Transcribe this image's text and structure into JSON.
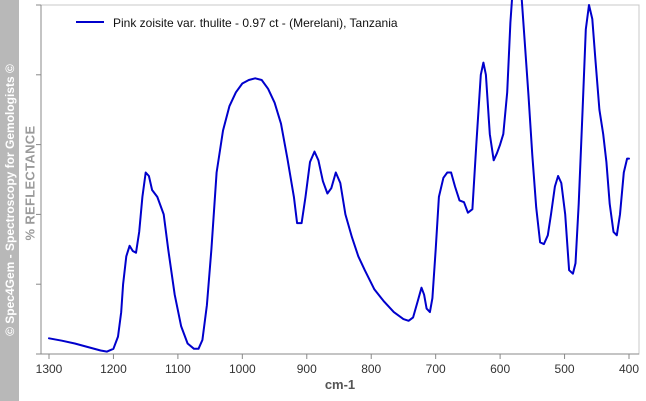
{
  "watermark": "© Spec4Gem - Spectroscopy for Gemologists ©",
  "chart_data": {
    "type": "line",
    "title": "",
    "xlabel": "cm-1",
    "ylabel": "% REFLECTANCE",
    "xlim": [
      1300,
      400
    ],
    "x_reversed": true,
    "ylim": [
      0,
      100
    ],
    "x_ticks": [
      1300,
      1200,
      1100,
      1000,
      900,
      800,
      700,
      600,
      500,
      400
    ],
    "x_tick_labels": [
      "1300",
      "1200",
      "1100",
      "1000",
      "900",
      "800",
      "700",
      "600",
      "500",
      "400"
    ],
    "y_ticks": [
      0,
      20,
      40,
      60,
      80,
      100
    ],
    "y_tick_labels_shown": false,
    "grid": false,
    "legend_position": "top-left",
    "series": [
      {
        "name": "Pink zoisite var. thulite - 0.97 ct - (Merelani), Tanzania",
        "color": "#0000cc",
        "points": [
          [
            1300,
            4.5
          ],
          [
            1280,
            3.8
          ],
          [
            1260,
            3.0
          ],
          [
            1240,
            2.0
          ],
          [
            1220,
            1.0
          ],
          [
            1210,
            0.7
          ],
          [
            1200,
            1.5
          ],
          [
            1193,
            5.0
          ],
          [
            1188,
            12.0
          ],
          [
            1185,
            20.0
          ],
          [
            1180,
            28.0
          ],
          [
            1175,
            31.0
          ],
          [
            1170,
            29.5
          ],
          [
            1165,
            29.0
          ],
          [
            1160,
            35.0
          ],
          [
            1155,
            45.0
          ],
          [
            1150,
            52.0
          ],
          [
            1145,
            51.0
          ],
          [
            1140,
            47.0
          ],
          [
            1132,
            45.0
          ],
          [
            1122,
            40.0
          ],
          [
            1115,
            30.0
          ],
          [
            1105,
            17.0
          ],
          [
            1095,
            8.0
          ],
          [
            1085,
            3.0
          ],
          [
            1075,
            1.5
          ],
          [
            1068,
            1.5
          ],
          [
            1062,
            4.0
          ],
          [
            1055,
            14.0
          ],
          [
            1048,
            30.0
          ],
          [
            1040,
            52.0
          ],
          [
            1030,
            64.0
          ],
          [
            1020,
            71.0
          ],
          [
            1010,
            75.0
          ],
          [
            1000,
            77.5
          ],
          [
            990,
            78.5
          ],
          [
            980,
            79.0
          ],
          [
            970,
            78.5
          ],
          [
            960,
            76.0
          ],
          [
            950,
            72.0
          ],
          [
            940,
            66.0
          ],
          [
            930,
            56.0
          ],
          [
            920,
            45.0
          ],
          [
            915,
            37.5
          ],
          [
            908,
            37.5
          ],
          [
            902,
            45.0
          ],
          [
            895,
            55.0
          ],
          [
            888,
            58.0
          ],
          [
            882,
            55.5
          ],
          [
            875,
            49.5
          ],
          [
            868,
            46.0
          ],
          [
            862,
            47.5
          ],
          [
            855,
            52.0
          ],
          [
            848,
            49.0
          ],
          [
            840,
            40.0
          ],
          [
            830,
            33.5
          ],
          [
            820,
            28.0
          ],
          [
            810,
            24.0
          ],
          [
            795,
            18.5
          ],
          [
            780,
            15.0
          ],
          [
            765,
            12.0
          ],
          [
            750,
            10.0
          ],
          [
            742,
            9.5
          ],
          [
            735,
            10.5
          ],
          [
            728,
            15.0
          ],
          [
            722,
            19.0
          ],
          [
            718,
            17.0
          ],
          [
            714,
            13.0
          ],
          [
            709,
            12.0
          ],
          [
            705,
            16.0
          ],
          [
            700,
            30.0
          ],
          [
            695,
            45.0
          ],
          [
            688,
            50.5
          ],
          [
            682,
            52.0
          ],
          [
            676,
            52.0
          ],
          [
            670,
            48.0
          ],
          [
            663,
            44.0
          ],
          [
            656,
            43.5
          ],
          [
            650,
            40.5
          ],
          [
            643,
            41.5
          ],
          [
            637,
            60.0
          ],
          [
            630,
            80.0
          ],
          [
            626,
            83.5
          ],
          [
            622,
            80.0
          ],
          [
            616,
            63.0
          ],
          [
            610,
            55.5
          ],
          [
            605,
            57.5
          ],
          [
            600,
            60.0
          ],
          [
            595,
            63.0
          ],
          [
            589,
            75.0
          ],
          [
            584,
            95.0
          ],
          [
            578,
            111.0
          ],
          [
            573,
            110.0
          ],
          [
            567,
            103.0
          ],
          [
            562,
            90.0
          ],
          [
            556,
            74.0
          ],
          [
            550,
            57.0
          ],
          [
            544,
            42.0
          ],
          [
            538,
            32.0
          ],
          [
            532,
            31.5
          ],
          [
            526,
            34.0
          ],
          [
            521,
            40.0
          ],
          [
            515,
            48.0
          ],
          [
            510,
            51.0
          ],
          [
            505,
            49.0
          ],
          [
            499,
            40.0
          ],
          [
            493,
            24.0
          ],
          [
            487,
            23.0
          ],
          [
            483,
            26.0
          ],
          [
            478,
            43.0
          ],
          [
            472,
            70.0
          ],
          [
            467,
            93.0
          ],
          [
            462,
            100.0
          ],
          [
            457,
            96.0
          ],
          [
            452,
            84.0
          ],
          [
            446,
            70.0
          ],
          [
            440,
            63.0
          ],
          [
            435,
            55.0
          ],
          [
            430,
            43.0
          ],
          [
            424,
            35.0
          ],
          [
            419,
            34.0
          ],
          [
            414,
            40.0
          ],
          [
            408,
            52.0
          ],
          [
            403,
            56.0
          ],
          [
            400,
            56.0
          ]
        ]
      }
    ]
  }
}
